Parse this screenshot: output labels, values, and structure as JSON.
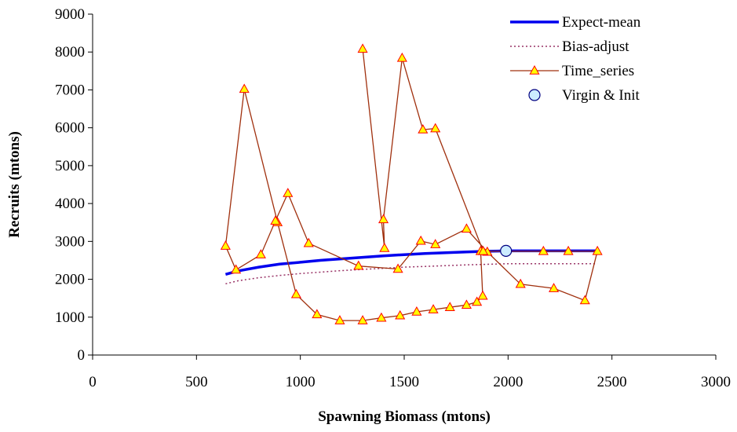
{
  "chart_data": {
    "type": "line",
    "xlabel": "Spawning Biomass (mtons)",
    "ylabel": "Recruits (mtons)",
    "xlim": [
      0,
      3000
    ],
    "ylim": [
      0,
      9000
    ],
    "xticks": [
      0,
      500,
      1000,
      1500,
      2000,
      2500,
      3000
    ],
    "yticks": [
      0,
      1000,
      2000,
      3000,
      4000,
      5000,
      6000,
      7000,
      8000,
      9000
    ],
    "grid": false,
    "legend_position": "top-right",
    "series": [
      {
        "name": "Expect-mean",
        "style": "line",
        "color": "#0000ee",
        "x": [
          640,
          700,
          800,
          900,
          1000,
          1100,
          1200,
          1300,
          1400,
          1500,
          1600,
          1700,
          1800,
          1900,
          1990,
          2100,
          2200,
          2300,
          2430
        ],
        "y": [
          2130,
          2220,
          2320,
          2400,
          2450,
          2500,
          2540,
          2580,
          2620,
          2650,
          2680,
          2700,
          2720,
          2740,
          2750,
          2750,
          2750,
          2750,
          2750
        ]
      },
      {
        "name": "Bias-adjust",
        "style": "dotted",
        "color": "#993366",
        "x": [
          640,
          700,
          800,
          900,
          1000,
          1100,
          1200,
          1300,
          1400,
          1500,
          1600,
          1700,
          1800,
          1900,
          1990,
          2100,
          2200,
          2300,
          2430
        ],
        "y": [
          1880,
          1960,
          2040,
          2100,
          2150,
          2190,
          2230,
          2260,
          2290,
          2320,
          2340,
          2360,
          2380,
          2395,
          2410,
          2410,
          2410,
          2410,
          2410
        ]
      },
      {
        "name": "Time_series",
        "style": "line-triangle",
        "color": "#a0300e",
        "marker_fill": "#ffff00",
        "marker_stroke": "#ff0000",
        "x": [
          1868,
          1878,
          1850,
          1800,
          1720,
          1640,
          1560,
          1480,
          1390,
          1300,
          1190,
          1080,
          980,
          890,
          730,
          640,
          690,
          810,
          880,
          940,
          1040,
          1280,
          1470,
          1580,
          1650,
          1800,
          1900,
          2060,
          2220,
          2370,
          2430,
          2290,
          2170,
          1880,
          1650,
          1590,
          1490,
          1400,
          1405,
          1300
        ],
        "y": [
          2740,
          1560,
          1400,
          1320,
          1260,
          1200,
          1140,
          1040,
          980,
          910,
          910,
          1070,
          1600,
          3500,
          7020,
          2880,
          2250,
          2650,
          3540,
          4270,
          2950,
          2350,
          2270,
          3010,
          2920,
          3330,
          2720,
          1870,
          1760,
          1440,
          2740,
          2740,
          2740,
          2740,
          5980,
          5950,
          7840,
          3580,
          2820,
          8080
        ]
      },
      {
        "name": "Virgin & Init",
        "style": "point",
        "color": "#ccecff",
        "marker_stroke": "#000080",
        "x": [
          1990
        ],
        "y": [
          2750
        ]
      }
    ]
  }
}
